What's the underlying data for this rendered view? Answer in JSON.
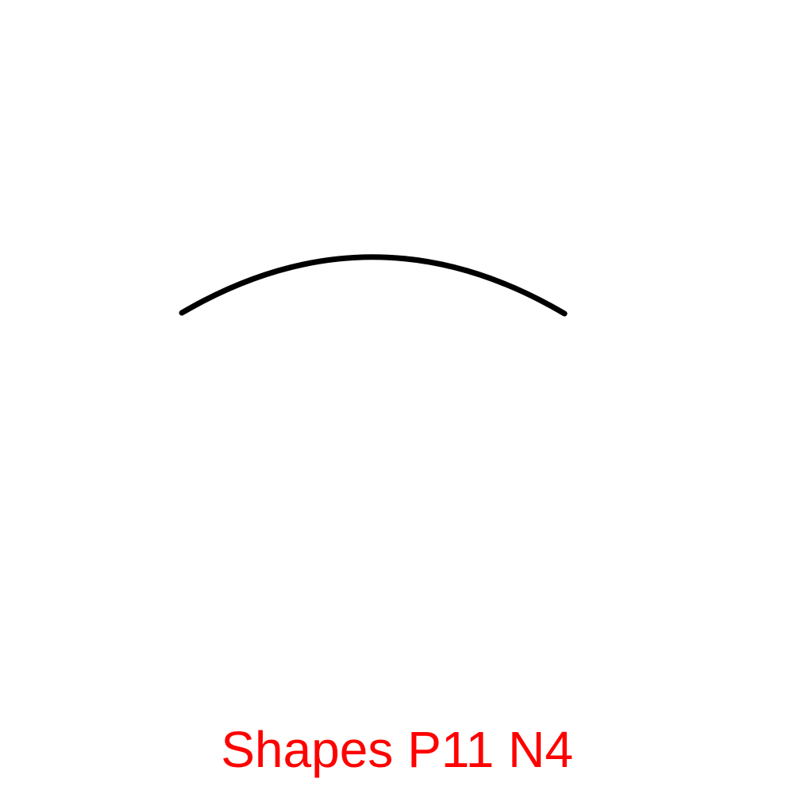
{
  "caption": {
    "text": "Shapes P11 N4"
  },
  "shape": {
    "kind": "arc"
  },
  "colors": {
    "background": "#ffffff",
    "stroke": "#000000",
    "caption": "#ff0000"
  }
}
